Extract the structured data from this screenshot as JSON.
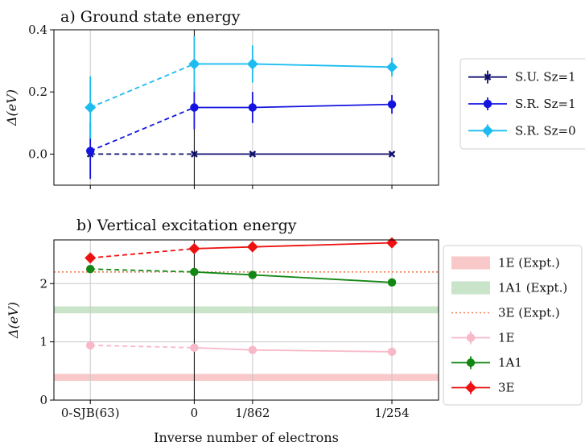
{
  "chart_data": [
    {
      "type": "line",
      "title": "a) Ground state energy",
      "ylabel": "Δ(eV)",
      "xlabel": "",
      "x_positions": [
        -1.0,
        0.0,
        0.5607,
        1.9013
      ],
      "x_ticks": [
        -1.0,
        0.0,
        0.5607,
        1.9013
      ],
      "x_tick_labels": [
        "",
        "",
        "",
        ""
      ],
      "xlim": [
        -1.35,
        2.35
      ],
      "ylim": [
        -0.1,
        0.4
      ],
      "y_ticks": [
        0.0,
        0.2,
        0.4
      ],
      "y_tick_labels": [
        "0.0",
        "0.2",
        "0.4"
      ],
      "grid": "x",
      "legend_position": "outside-right",
      "series": [
        {
          "name": "S.U. Sz=1",
          "color": "#11116e",
          "marker": "x",
          "values": [
            0.0,
            0.0,
            0.0,
            0.0
          ],
          "errors": [
            0.0,
            0.0,
            0.0,
            0.0
          ]
        },
        {
          "name": "S.R. Sz=1",
          "color": "#1414e0",
          "marker": "circle",
          "values": [
            0.01,
            0.15,
            0.15,
            0.16
          ],
          "errors": [
            0.09,
            0.07,
            0.05,
            0.03
          ]
        },
        {
          "name": "S.R. Sz=0",
          "color": "#1cbcf0",
          "marker": "diamond",
          "values": [
            0.15,
            0.29,
            0.29,
            0.28
          ],
          "errors": [
            0.1,
            0.09,
            0.06,
            0.03
          ]
        }
      ]
    },
    {
      "type": "line",
      "title": "b) Vertical excitation energy",
      "ylabel": "Δ(eV)",
      "xlabel": "Inverse number of electrons",
      "x_positions": [
        -1.0,
        0.0,
        0.5607,
        1.9013
      ],
      "x_ticks": [
        -1.0,
        0.0,
        0.5607,
        1.9013
      ],
      "x_tick_labels": [
        "0-SJB(63)",
        "0",
        "1/862",
        "1/254"
      ],
      "xlim": [
        -1.35,
        2.35
      ],
      "ylim": [
        0,
        2.75
      ],
      "y_ticks": [
        0,
        1,
        2
      ],
      "y_tick_labels": [
        "0",
        "1",
        "2"
      ],
      "grid": "both",
      "legend_position": "outside-right",
      "bands": [
        {
          "name": "1E (Expt.)",
          "color": "#f9c8c8",
          "value": 0.39,
          "half_width": 0.06
        },
        {
          "name": "1A1 (Expt.)",
          "color": "#c9e4c9",
          "value": 1.55,
          "half_width": 0.06
        }
      ],
      "reference_lines": [
        {
          "name": "3E (Expt.)",
          "color": "#f07a50",
          "value": 2.2
        }
      ],
      "series": [
        {
          "name": "1E",
          "color": "#f7b8c8",
          "marker": "circle",
          "values": [
            0.94,
            0.9,
            0.86,
            0.83
          ],
          "errors": [
            0.05,
            0.05,
            0.04,
            0.04
          ]
        },
        {
          "name": "1A1",
          "color": "#138713",
          "marker": "circle",
          "values": [
            2.25,
            2.2,
            2.15,
            2.02
          ],
          "errors": [
            0.04,
            0.04,
            0.04,
            0.04
          ]
        },
        {
          "name": "3E",
          "color": "#ee1111",
          "marker": "diamond",
          "values": [
            2.44,
            2.6,
            2.63,
            2.7
          ],
          "errors": [
            0.03,
            0.03,
            0.03,
            0.03
          ]
        }
      ]
    }
  ]
}
